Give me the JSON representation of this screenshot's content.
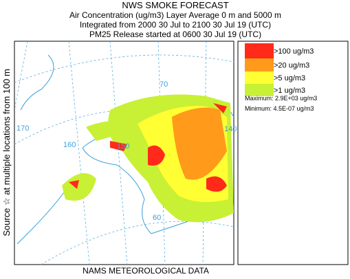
{
  "header": {
    "title": "NWS SMOKE FORECAST",
    "lines": [
      "Air Concentration (ug/m3) Layer Average    0 m and  5000 m",
      "Integrated from 2000 30 Jul to 2100 30 Jul 19 (UTC)",
      "PM25 Release started at 0600 30 Jul 19 (UTC)"
    ]
  },
  "side_label": "Source ☆ at multiple locations    from  100 m",
  "footer": "NAMS METEOROLOGICAL DATA",
  "legend": {
    "items": [
      {
        "label": ">100 ug/m3",
        "color": "#ff2a1a"
      },
      {
        "label": ">20 ug/m3",
        "color": "#ff9a1a"
      },
      {
        "label": ">5 ug/m3",
        "color": "#ffff33"
      },
      {
        "label": ">1 ug/m3",
        "color": "#c8f035"
      }
    ],
    "maximum": "Maximum: 2.9E+03 ug/m3",
    "minimum": "Minimum: 4.5E-07 ug/m3"
  },
  "map": {
    "graticule_labels": [
      "70",
      "170",
      "160",
      "150",
      "140",
      "60"
    ]
  }
}
